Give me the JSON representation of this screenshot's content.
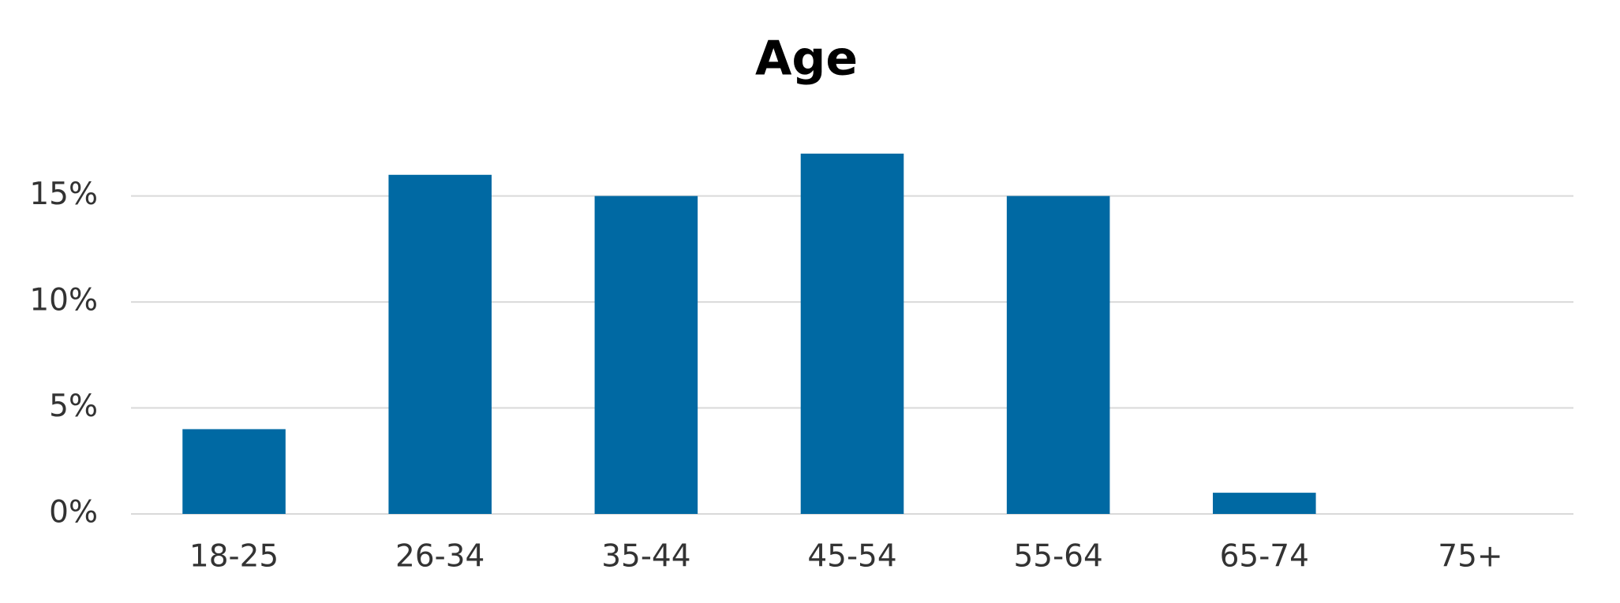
{
  "chart_data": {
    "type": "bar",
    "title": "Age",
    "categories": [
      "18-25",
      "26-34",
      "35-44",
      "45-54",
      "55-64",
      "65-74",
      "75+"
    ],
    "values": [
      4,
      16,
      15,
      17,
      15,
      1,
      0
    ],
    "color": "#0069a3",
    "ylim": [
      0,
      18
    ],
    "yticks": [
      {
        "value": 0,
        "label": "0%"
      },
      {
        "value": 5,
        "label": "5%"
      },
      {
        "value": 10,
        "label": "10%"
      },
      {
        "value": 15,
        "label": "15%"
      }
    ],
    "grid": true
  }
}
